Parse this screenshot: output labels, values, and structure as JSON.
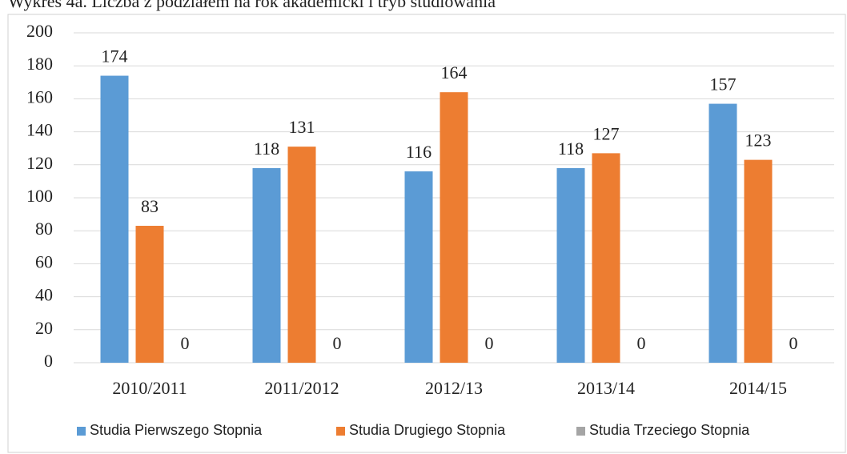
{
  "chart_data": {
    "type": "bar",
    "title": "Wykres 4a. Liczba z podziałem na rok akademicki i tryb studiowania",
    "categories": [
      "2010/2011",
      "2011/2012",
      "2012/13",
      "2013/14",
      "2014/15"
    ],
    "series": [
      {
        "name": "Studia Pierwszego Stopnia",
        "color": "#5b9bd5",
        "values": [
          174,
          118,
          116,
          118,
          157
        ]
      },
      {
        "name": "Studia Drugiego Stopnia",
        "color": "#ed7d31",
        "values": [
          83,
          131,
          164,
          127,
          123
        ]
      },
      {
        "name": "Studia Trzeciego Stopnia",
        "color": "#a5a5a5",
        "values": [
          0,
          0,
          0,
          0,
          0
        ]
      }
    ],
    "ylim": [
      0,
      200
    ],
    "yticks": [
      0,
      20,
      40,
      60,
      80,
      100,
      120,
      140,
      160,
      180,
      200
    ],
    "grid": true,
    "legend": "bottom"
  }
}
